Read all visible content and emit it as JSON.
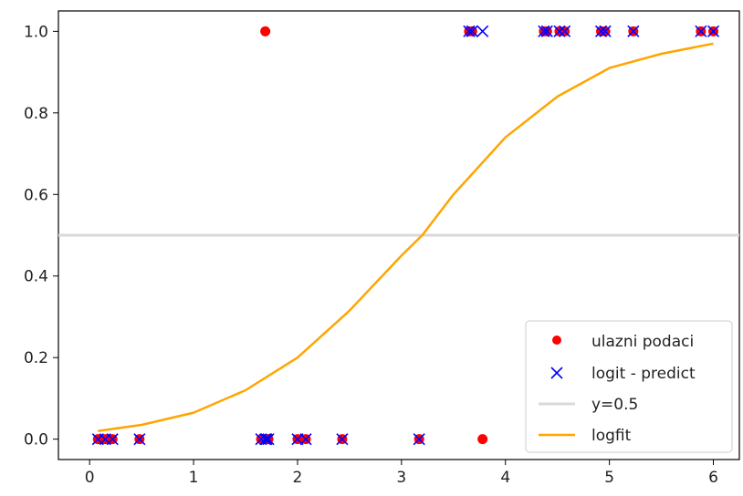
{
  "chart_data": {
    "type": "scatter",
    "title": "",
    "xlabel": "",
    "ylabel": "",
    "xlim": [
      -0.3,
      6.25
    ],
    "ylim": [
      -0.05,
      1.05
    ],
    "xticks": [
      0,
      1,
      2,
      3,
      4,
      5,
      6
    ],
    "yticks": [
      0.0,
      0.2,
      0.4,
      0.6,
      0.8,
      1.0
    ],
    "xtick_labels": [
      "0",
      "1",
      "2",
      "3",
      "4",
      "5",
      "6"
    ],
    "ytick_labels": [
      "0.0",
      "0.2",
      "0.4",
      "0.6",
      "0.8",
      "1.0"
    ],
    "grid": false,
    "legend_position": "lower-right",
    "series": [
      {
        "name": "ulazni podaci",
        "kind": "points",
        "marker": "circle",
        "color": "#ff0000",
        "x": [
          0.08,
          0.15,
          0.22,
          0.48,
          1.65,
          1.7,
          1.72,
          2.0,
          2.08,
          2.43,
          3.17,
          3.78,
          1.69,
          3.65,
          3.68,
          4.37,
          4.4,
          4.52,
          4.57,
          4.92,
          4.96,
          5.23,
          5.88,
          6.0
        ],
        "y": [
          0,
          0,
          0,
          0,
          0,
          0,
          0,
          0,
          0,
          0,
          0,
          0,
          1,
          1,
          1,
          1,
          1,
          1,
          1,
          1,
          1,
          1,
          1,
          1
        ]
      },
      {
        "name": "logit - predict",
        "kind": "points",
        "marker": "x",
        "color": "#0000ff",
        "x": [
          0.08,
          0.15,
          0.22,
          0.48,
          1.65,
          1.7,
          1.72,
          1.69,
          2.0,
          2.08,
          2.43,
          3.17,
          3.65,
          3.68,
          3.78,
          4.37,
          4.4,
          4.52,
          4.57,
          4.92,
          4.96,
          5.23,
          5.88,
          6.0
        ],
        "y": [
          0,
          0,
          0,
          0,
          0,
          0,
          0,
          0,
          0,
          0,
          0,
          0,
          1,
          1,
          1,
          1,
          1,
          1,
          1,
          1,
          1,
          1,
          1,
          1
        ]
      },
      {
        "name": "y=0.5",
        "kind": "hline",
        "color": "#d9d9d9",
        "y": 0.5
      },
      {
        "name": "logfit",
        "kind": "line",
        "color": "#ffa500",
        "x": [
          0.08,
          0.5,
          1.0,
          1.5,
          2.0,
          2.5,
          3.0,
          3.2,
          3.5,
          4.0,
          4.5,
          5.0,
          5.5,
          6.0
        ],
        "y": [
          0.02,
          0.035,
          0.065,
          0.12,
          0.2,
          0.315,
          0.45,
          0.5,
          0.6,
          0.74,
          0.84,
          0.91,
          0.945,
          0.97
        ]
      }
    ]
  }
}
